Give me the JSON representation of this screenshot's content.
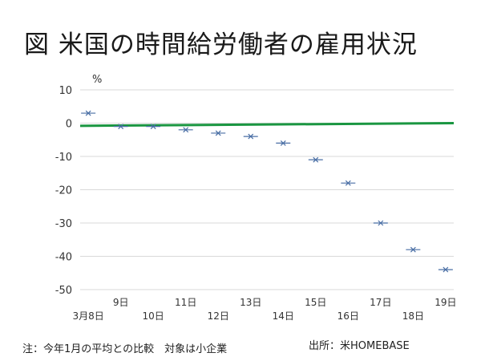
{
  "title": "図 米国の時間給労働者の雇用状況",
  "footnote": "注：今年1月の平均との比較　対象は小企業",
  "source": "出所：米HOMEBASE",
  "colors": {
    "marker": "#4a6fa5",
    "reference_line": "#1a9641",
    "gridline": "#d9d9d9",
    "axis_text": "#333333"
  },
  "chart_data": {
    "type": "line",
    "ylabel": "%",
    "ylim": [
      -50,
      10
    ],
    "yticks": [
      10,
      0,
      -10,
      -20,
      -30,
      -40,
      -50
    ],
    "grid": true,
    "categories": [
      "3月8日",
      "9日",
      "10日",
      "11日",
      "12日",
      "13日",
      "14日",
      "15日",
      "16日",
      "17日",
      "18日",
      "19日"
    ],
    "series": [
      {
        "values": [
          3,
          -1,
          -1,
          -2,
          -3,
          -4,
          -6,
          -11,
          -18,
          -30,
          -38,
          -44
        ],
        "style": "markers"
      }
    ],
    "reference_line": {
      "from": -0.8,
      "to": 0
    }
  }
}
